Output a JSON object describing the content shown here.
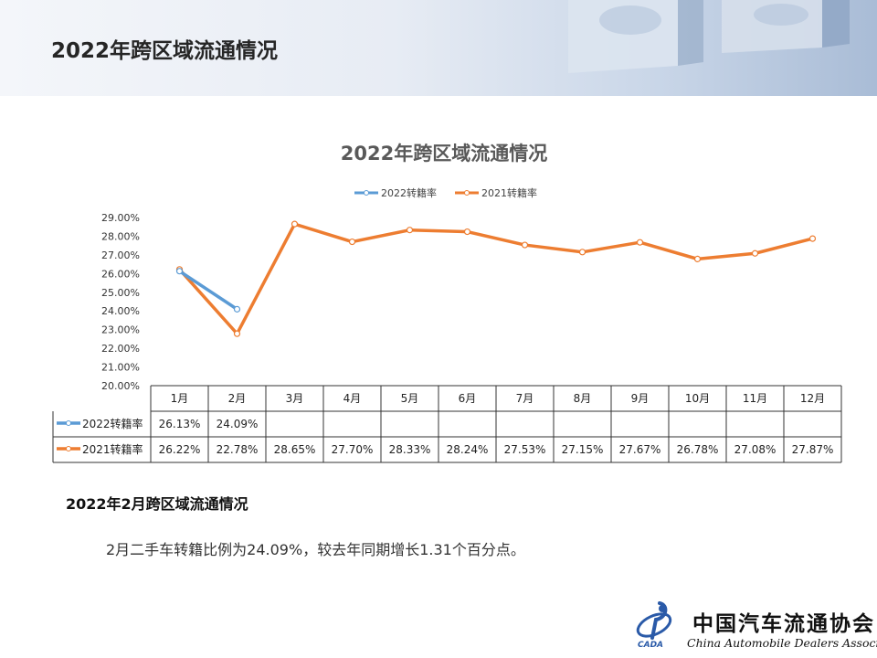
{
  "slide": {
    "title": "2022年跨区域流通情况"
  },
  "chart_data": {
    "type": "line",
    "title": "2022年跨区域流通情况",
    "categories": [
      "1月",
      "2月",
      "3月",
      "4月",
      "5月",
      "6月",
      "7月",
      "8月",
      "9月",
      "10月",
      "11月",
      "12月"
    ],
    "y_ticks": [
      "29.00%",
      "28.00%",
      "27.00%",
      "26.00%",
      "25.00%",
      "24.00%",
      "23.00%",
      "22.00%",
      "21.00%",
      "20.00%"
    ],
    "ylim": [
      20,
      29
    ],
    "legend_position": "top",
    "data_table": true,
    "series": [
      {
        "name": "2022转籍率",
        "color": "#5b9bd5",
        "values": [
          26.13,
          24.09,
          null,
          null,
          null,
          null,
          null,
          null,
          null,
          null,
          null,
          null
        ],
        "labels": [
          "26.13%",
          "24.09%",
          "",
          "",
          "",
          "",
          "",
          "",
          "",
          "",
          "",
          ""
        ]
      },
      {
        "name": "2021转籍率",
        "color": "#ed7d31",
        "values": [
          26.22,
          22.78,
          28.65,
          27.7,
          28.33,
          28.24,
          27.53,
          27.15,
          27.67,
          26.78,
          27.08,
          27.87
        ],
        "labels": [
          "26.22%",
          "22.78%",
          "28.65%",
          "27.70%",
          "28.33%",
          "28.24%",
          "27.53%",
          "27.15%",
          "27.67%",
          "26.78%",
          "27.08%",
          "27.87%"
        ]
      }
    ]
  },
  "summary": {
    "heading": "2022年2月跨区域流通情况",
    "text": "2月二手车转籍比例为24.09%，较去年同期增长1.31个百分点。"
  },
  "footer": {
    "logo_mark": "CADA",
    "org_name_cn": "中国汽车流通协会",
    "org_name_en": "China Automobile Dealers Association"
  }
}
